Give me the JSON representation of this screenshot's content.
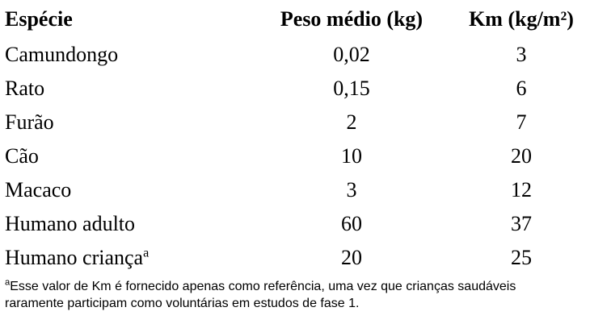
{
  "colors": {
    "background": "#ffffff",
    "text": "#000000"
  },
  "table": {
    "columns": [
      "Espécie",
      "Peso médio (kg)",
      "Km (kg/m²)"
    ],
    "rows": [
      {
        "especie": "Camundongo",
        "marker": "",
        "peso": "0,02",
        "km": "3"
      },
      {
        "especie": "Rato",
        "marker": "",
        "peso": "0,15",
        "km": "6"
      },
      {
        "especie": "Furão",
        "marker": "",
        "peso": "2",
        "km": "7"
      },
      {
        "especie": "Cão",
        "marker": "",
        "peso": "10",
        "km": "20"
      },
      {
        "especie": "Macaco",
        "marker": "",
        "peso": "3",
        "km": "12"
      },
      {
        "especie": "Humano adulto",
        "marker": "",
        "peso": "60",
        "km": "37"
      },
      {
        "especie": "Humano criança",
        "marker": "a",
        "peso": "20",
        "km": "25"
      }
    ]
  },
  "footnote": {
    "marker": "a",
    "line1": "Esse valor de Km é fornecido apenas como referência, uma vez que crianças saudáveis",
    "line2": "raramente participam como voluntárias em estudos de fase 1."
  }
}
